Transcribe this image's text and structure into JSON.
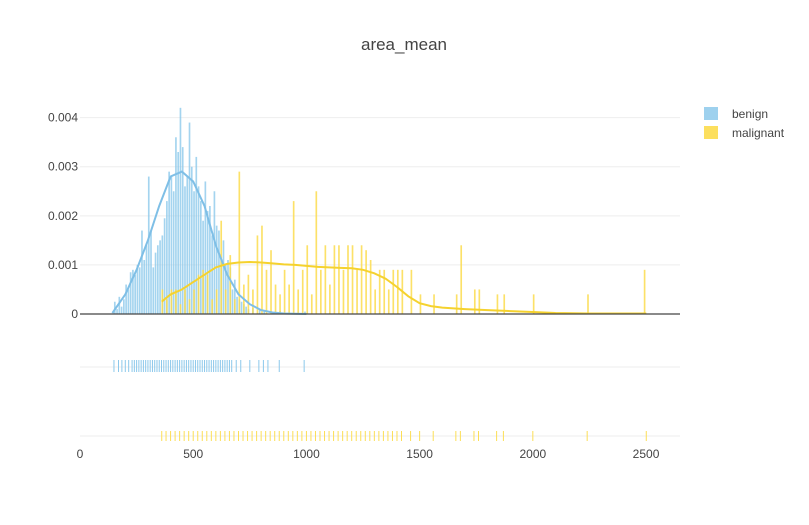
{
  "chart_data": {
    "type": "histogram",
    "title": "area_mean",
    "xlabel": "",
    "ylabel": "",
    "xlim": [
      0,
      2650
    ],
    "ylim": [
      0,
      0.0044
    ],
    "x_ticks": [
      0,
      500,
      1000,
      1500,
      2000,
      2500
    ],
    "x_tick_labels": [
      "0",
      "500",
      "1000",
      "1500",
      "2000",
      "2500"
    ],
    "y_ticks": [
      0,
      0.001,
      0.002,
      0.003,
      0.004
    ],
    "y_tick_labels": [
      "0",
      "0.001",
      "0.002",
      "0.003",
      "0.004"
    ],
    "grid": true,
    "legend_position": "top-right",
    "bin_width": 10,
    "subplots": [
      "density",
      "rug"
    ],
    "series": [
      {
        "name": "benign",
        "color": "#86c5ea",
        "histogram": {
          "bin_start": [
            150,
            160,
            170,
            180,
            190,
            200,
            210,
            220,
            230,
            240,
            250,
            260,
            270,
            280,
            290,
            300,
            310,
            320,
            330,
            340,
            350,
            360,
            370,
            380,
            390,
            400,
            410,
            420,
            430,
            440,
            450,
            460,
            470,
            480,
            490,
            500,
            510,
            520,
            530,
            540,
            550,
            560,
            570,
            580,
            590,
            600,
            610,
            620,
            630,
            640,
            650,
            660,
            670,
            680,
            690,
            700,
            710,
            720,
            730,
            740,
            760,
            790,
            810,
            880,
            990
          ],
          "density": [
            0.00025,
            0.0001,
            0.00035,
            0.00015,
            0.0003,
            0.0006,
            0.0005,
            0.00085,
            0.0009,
            0.0008,
            0.001,
            0.00095,
            0.0017,
            0.0011,
            0.0014,
            0.0028,
            0.0017,
            0.00095,
            0.00125,
            0.0014,
            0.0015,
            0.0016,
            0.00195,
            0.0023,
            0.0029,
            0.0028,
            0.0025,
            0.0036,
            0.0033,
            0.0042,
            0.0034,
            0.0026,
            0.0028,
            0.0039,
            0.003,
            0.0025,
            0.0032,
            0.0026,
            0.0023,
            0.0019,
            0.0027,
            0.0021,
            0.0022,
            0.0016,
            0.0025,
            0.0018,
            0.0017,
            0.0011,
            0.0015,
            0.001,
            0.0011,
            0.00095,
            0.0005,
            0.0007,
            0.00035,
            0.0003,
            0.00025,
            0.0002,
            0.00015,
            0.0001,
            0.00012,
            0.0001,
            8e-05,
            6e-05,
            5e-05
          ]
        },
        "kde": {
          "x": [
            143,
            200,
            250,
            300,
            350,
            400,
            450,
            500,
            550,
            600,
            650,
            700,
            750,
            800,
            850,
            900,
            950,
            1000
          ],
          "y": [
            2e-05,
            0.0004,
            0.0009,
            0.0015,
            0.0022,
            0.0028,
            0.0029,
            0.0027,
            0.0022,
            0.0014,
            0.0008,
            0.0004,
            0.0002,
            8e-05,
            3e-05,
            1e-05,
            5e-06,
            0.0
          ]
        },
        "rug": [
          150,
          170,
          185,
          200,
          215,
          230,
          240,
          250,
          260,
          270,
          280,
          290,
          300,
          310,
          320,
          330,
          340,
          350,
          360,
          370,
          380,
          390,
          400,
          410,
          420,
          430,
          440,
          450,
          460,
          470,
          480,
          490,
          500,
          510,
          520,
          530,
          540,
          550,
          560,
          570,
          580,
          590,
          600,
          610,
          620,
          630,
          640,
          650,
          660,
          670,
          690,
          710,
          750,
          790,
          810,
          830,
          880,
          990
        ]
      },
      {
        "name": "malignant",
        "color": "#fcdc4d",
        "histogram": {
          "bin_start": [
            360,
            380,
            400,
            420,
            440,
            460,
            480,
            500,
            520,
            540,
            560,
            580,
            600,
            620,
            640,
            660,
            680,
            700,
            720,
            740,
            760,
            780,
            800,
            820,
            840,
            860,
            880,
            900,
            920,
            940,
            960,
            980,
            1000,
            1020,
            1040,
            1060,
            1080,
            1100,
            1120,
            1140,
            1160,
            1180,
            1200,
            1220,
            1240,
            1260,
            1280,
            1300,
            1320,
            1340,
            1360,
            1380,
            1400,
            1420,
            1460,
            1500,
            1560,
            1660,
            1680,
            1740,
            1760,
            1840,
            1870,
            2000,
            2240,
            2490
          ],
          "density": [
            0.0005,
            0.0003,
            0.0005,
            0.0005,
            0.0002,
            0.0005,
            0.0003,
            0.0005,
            0.0008,
            0.0009,
            0.0008,
            0.0003,
            0.0005,
            0.0019,
            0.0005,
            0.0012,
            0.0003,
            0.0029,
            0.0006,
            0.0008,
            0.0005,
            0.0016,
            0.0018,
            0.0009,
            0.0013,
            0.0006,
            0.0004,
            0.0009,
            0.0006,
            0.0023,
            0.0005,
            0.0009,
            0.0014,
            0.0004,
            0.0025,
            0.0009,
            0.0014,
            0.0006,
            0.0014,
            0.0014,
            0.0009,
            0.0014,
            0.0014,
            0.0009,
            0.0014,
            0.0013,
            0.0011,
            0.0005,
            0.0009,
            0.0009,
            0.0005,
            0.0009,
            0.0009,
            0.0009,
            0.0009,
            0.0004,
            0.0004,
            0.0004,
            0.0014,
            0.0005,
            0.0005,
            0.0004,
            0.0004,
            0.0004,
            0.0004,
            0.0009
          ]
        },
        "kde": {
          "x": [
            361,
            400,
            450,
            500,
            550,
            600,
            650,
            700,
            750,
            800,
            850,
            900,
            950,
            1000,
            1050,
            1100,
            1150,
            1200,
            1250,
            1300,
            1350,
            1400,
            1450,
            1500,
            1550,
            1600,
            1700,
            1800,
            1900,
            2000,
            2100,
            2250,
            2400,
            2501
          ],
          "y": [
            0.00025,
            0.0004,
            0.0005,
            0.00065,
            0.0008,
            0.00095,
            0.00102,
            0.00105,
            0.00106,
            0.00105,
            0.00103,
            0.00101,
            0.001,
            0.00098,
            0.00096,
            0.00095,
            0.00094,
            0.00093,
            0.0009,
            0.00083,
            0.00072,
            0.00055,
            0.00036,
            0.00022,
            0.00016,
            0.00013,
            0.0001,
            8e-05,
            6e-05,
            4e-05,
            2e-05,
            1e-05,
            1e-05,
            1e-05
          ]
        },
        "rug": [
          361,
          380,
          400,
          420,
          440,
          460,
          480,
          500,
          520,
          540,
          560,
          580,
          600,
          620,
          640,
          660,
          680,
          700,
          720,
          740,
          760,
          780,
          800,
          820,
          840,
          860,
          880,
          900,
          920,
          940,
          960,
          980,
          1000,
          1020,
          1040,
          1060,
          1080,
          1100,
          1120,
          1140,
          1160,
          1180,
          1200,
          1220,
          1240,
          1260,
          1280,
          1300,
          1320,
          1340,
          1360,
          1380,
          1400,
          1420,
          1460,
          1500,
          1560,
          1660,
          1680,
          1740,
          1760,
          1840,
          1870,
          2000,
          2240,
          2501
        ]
      }
    ]
  }
}
